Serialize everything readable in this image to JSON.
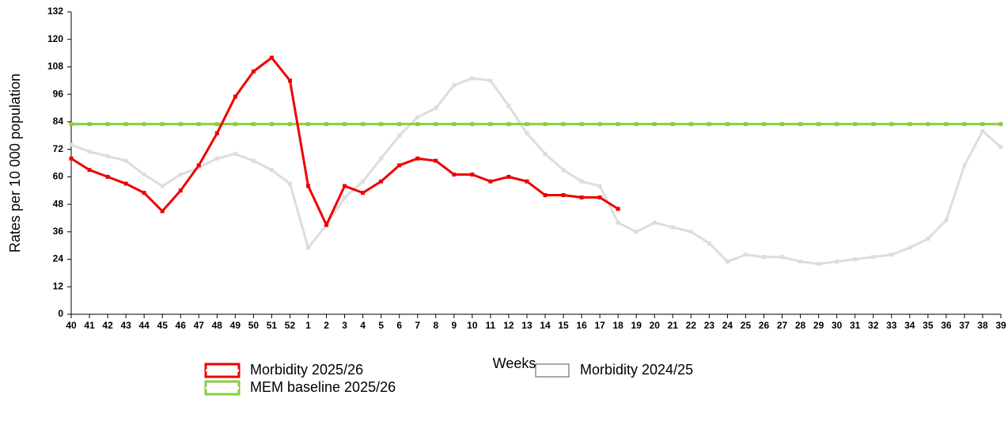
{
  "chart_data": {
    "type": "line",
    "y_label": "Rates per 10 000 population",
    "x_label": "Weeks",
    "categories": [
      "40",
      "41",
      "42",
      "43",
      "44",
      "45",
      "46",
      "47",
      "48",
      "49",
      "50",
      "51",
      "52",
      "1",
      "2",
      "3",
      "4",
      "5",
      "6",
      "7",
      "8",
      "9",
      "10",
      "11",
      "12",
      "13",
      "14",
      "15",
      "16",
      "17",
      "18",
      "19",
      "20",
      "21",
      "22",
      "23",
      "24",
      "25",
      "26",
      "27",
      "28",
      "29",
      "30",
      "31",
      "32",
      "33",
      "34",
      "35",
      "36",
      "37",
      "38",
      "39"
    ],
    "series": [
      {
        "name": "Morbidity 2025/26",
        "color": "#ee0000",
        "values": [
          68,
          63,
          60,
          57,
          53,
          45,
          54,
          65,
          79,
          95,
          106,
          112,
          102,
          56,
          39,
          56,
          53,
          58,
          65,
          68,
          67,
          61,
          61,
          58,
          60,
          58,
          52,
          52,
          51,
          51,
          46,
          null,
          null,
          null,
          null,
          null,
          null,
          null,
          null,
          null,
          null,
          null,
          null,
          null,
          null,
          null,
          null,
          null,
          null,
          null,
          null,
          null
        ]
      },
      {
        "name": "Morbidity 2024/25",
        "color": "#dddddd",
        "values": [
          74,
          71,
          69,
          67,
          61,
          56,
          61,
          64,
          68,
          70,
          67,
          63,
          57,
          29,
          39,
          51,
          58,
          68,
          78,
          86,
          90,
          100,
          103,
          102,
          91,
          79,
          70,
          63,
          58,
          56,
          40,
          36,
          40,
          38,
          36,
          31,
          23,
          26,
          25,
          25,
          23,
          22,
          23,
          24,
          25,
          26,
          29,
          33,
          41,
          65,
          80,
          73
        ]
      },
      {
        "name": "MEM baseline 2025/26",
        "color": "#88cc44",
        "values": [
          83,
          83,
          83,
          83,
          83,
          83,
          83,
          83,
          83,
          83,
          83,
          83,
          83,
          83,
          83,
          83,
          83,
          83,
          83,
          83,
          83,
          83,
          83,
          83,
          83,
          83,
          83,
          83,
          83,
          83,
          83,
          83,
          83,
          83,
          83,
          83,
          83,
          83,
          83,
          83,
          83,
          83,
          83,
          83,
          83,
          83,
          83,
          83,
          83,
          83,
          83,
          83
        ]
      }
    ],
    "ylim": [
      0,
      132
    ],
    "yticks": [
      0,
      12,
      24,
      36,
      48,
      60,
      72,
      84,
      96,
      108,
      120,
      132
    ]
  }
}
